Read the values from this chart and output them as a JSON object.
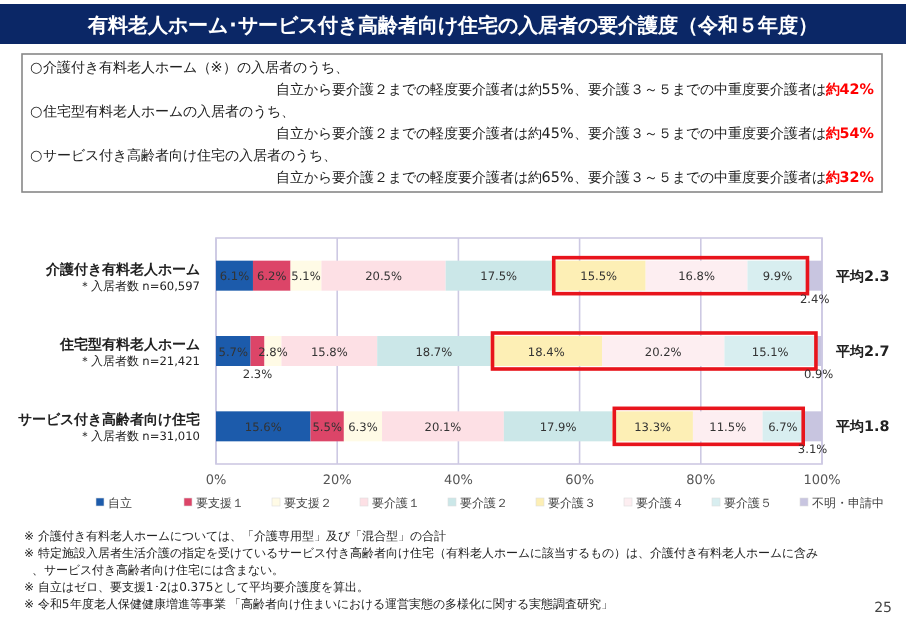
{
  "chart_data": {
    "type": "bar",
    "orientation": "horizontal",
    "stacked": true,
    "title": "有料老人ホーム･サービス付き高齢者向け住宅の入居者の要介護度（令和５年度）",
    "categories": [
      "介護付き有料老人ホーム",
      "住宅型有料老人ホーム",
      "サービス付き高齢者向け住宅"
    ],
    "series": [
      {
        "name": "自立",
        "color": "#1c5bab",
        "values": [
          6.1,
          5.7,
          15.6
        ],
        "value_labels": [
          "6.1%",
          "5.7%",
          "15.6%"
        ]
      },
      {
        "name": "要支援１",
        "color": "#dc4568",
        "values": [
          6.2,
          2.3,
          5.5
        ],
        "value_labels": [
          "6.2%",
          "2.3%",
          "5.5%"
        ]
      },
      {
        "name": "要支援２",
        "color": "#fffbe6",
        "values": [
          5.1,
          2.8,
          6.3
        ],
        "value_labels": [
          "5.1%",
          "2.8%",
          "6.3%"
        ]
      },
      {
        "name": "要介護１",
        "color": "#fde0e5",
        "values": [
          20.5,
          15.8,
          20.1
        ],
        "value_labels": [
          "20.5%",
          "15.8%",
          "20.1%"
        ]
      },
      {
        "name": "要介護２",
        "color": "#cbe7e8",
        "values": [
          17.5,
          18.7,
          17.9
        ],
        "value_labels": [
          "17.5%",
          "18.7%",
          "17.9%"
        ]
      },
      {
        "name": "要介護３",
        "color": "#fdefb5",
        "values": [
          15.5,
          18.4,
          13.3
        ],
        "value_labels": [
          "15.5%",
          "18.4%",
          "13.3%"
        ]
      },
      {
        "name": "要介護４",
        "color": "#fdeef1",
        "values": [
          16.8,
          20.2,
          11.5
        ],
        "value_labels": [
          "16.8%",
          "20.2%",
          "11.5%"
        ]
      },
      {
        "name": "要介護５",
        "color": "#d8eef0",
        "values": [
          9.9,
          15.1,
          6.7
        ],
        "value_labels": [
          "9.9%",
          "15.1%",
          "6.7%"
        ]
      },
      {
        "name": "不明・申請中",
        "color": "#c8c5e0",
        "values": [
          2.4,
          0.9,
          3.1
        ],
        "value_labels": [
          "2.4%",
          "0.9%",
          "3.1%"
        ]
      }
    ],
    "xlim": [
      0,
      100
    ],
    "xticks": [
      {
        "value": 0,
        "label": "0%"
      },
      {
        "value": 20,
        "label": "20%"
      },
      {
        "value": 40,
        "label": "40%"
      },
      {
        "value": 60,
        "label": "60%"
      },
      {
        "value": 80,
        "label": "80%"
      },
      {
        "value": 100,
        "label": "100%"
      }
    ],
    "grid": "x",
    "legend": "bottom",
    "annotations": [
      "平均2.3",
      "平均2.7",
      "平均1.8",
      "＊入居者数 n=60,597",
      "＊入居者数 n=21,421",
      "＊入居者数 n=31,010",
      "○介護付き有料老人ホーム（※）の入居者のうち、",
      "自立から要介護２までの軽度要介護者は約55%、要介護３～５までの中重度要介護者は**約42%**",
      "○住宅型有料老人ホームの入居者のうち、",
      "自立から要介護２までの軽度要介護者は約45%、要介護３～５までの中重度要介護者は**約54%**",
      "○サービス付き高齢者向け住宅の入居者のうち、",
      "自立から要介護２までの軽度要介護者は約65%、要介護３～５までの中重度要介護者は**約32%**",
      "※ 介護付き有料老人ホームについては、「介護専用型」及び「混合型」の合計",
      "※ 特定施設入居者生活介護の指定を受けているサービス付き高齢者向け住宅（有料老人ホームに該当するもの）は、介護付き有料老人ホームに含み、サービス付き高齢者向け住宅には含まない。",
      "※ 自立はゼロ、要支援1･2は0.375として平均要介護度を算出。",
      "※ 令和5年度老人保健健康増進等事業 「高齢者向け住まいにおける運営実態の多様化に関する実態調査研究」",
      "25"
    ]
  }
}
